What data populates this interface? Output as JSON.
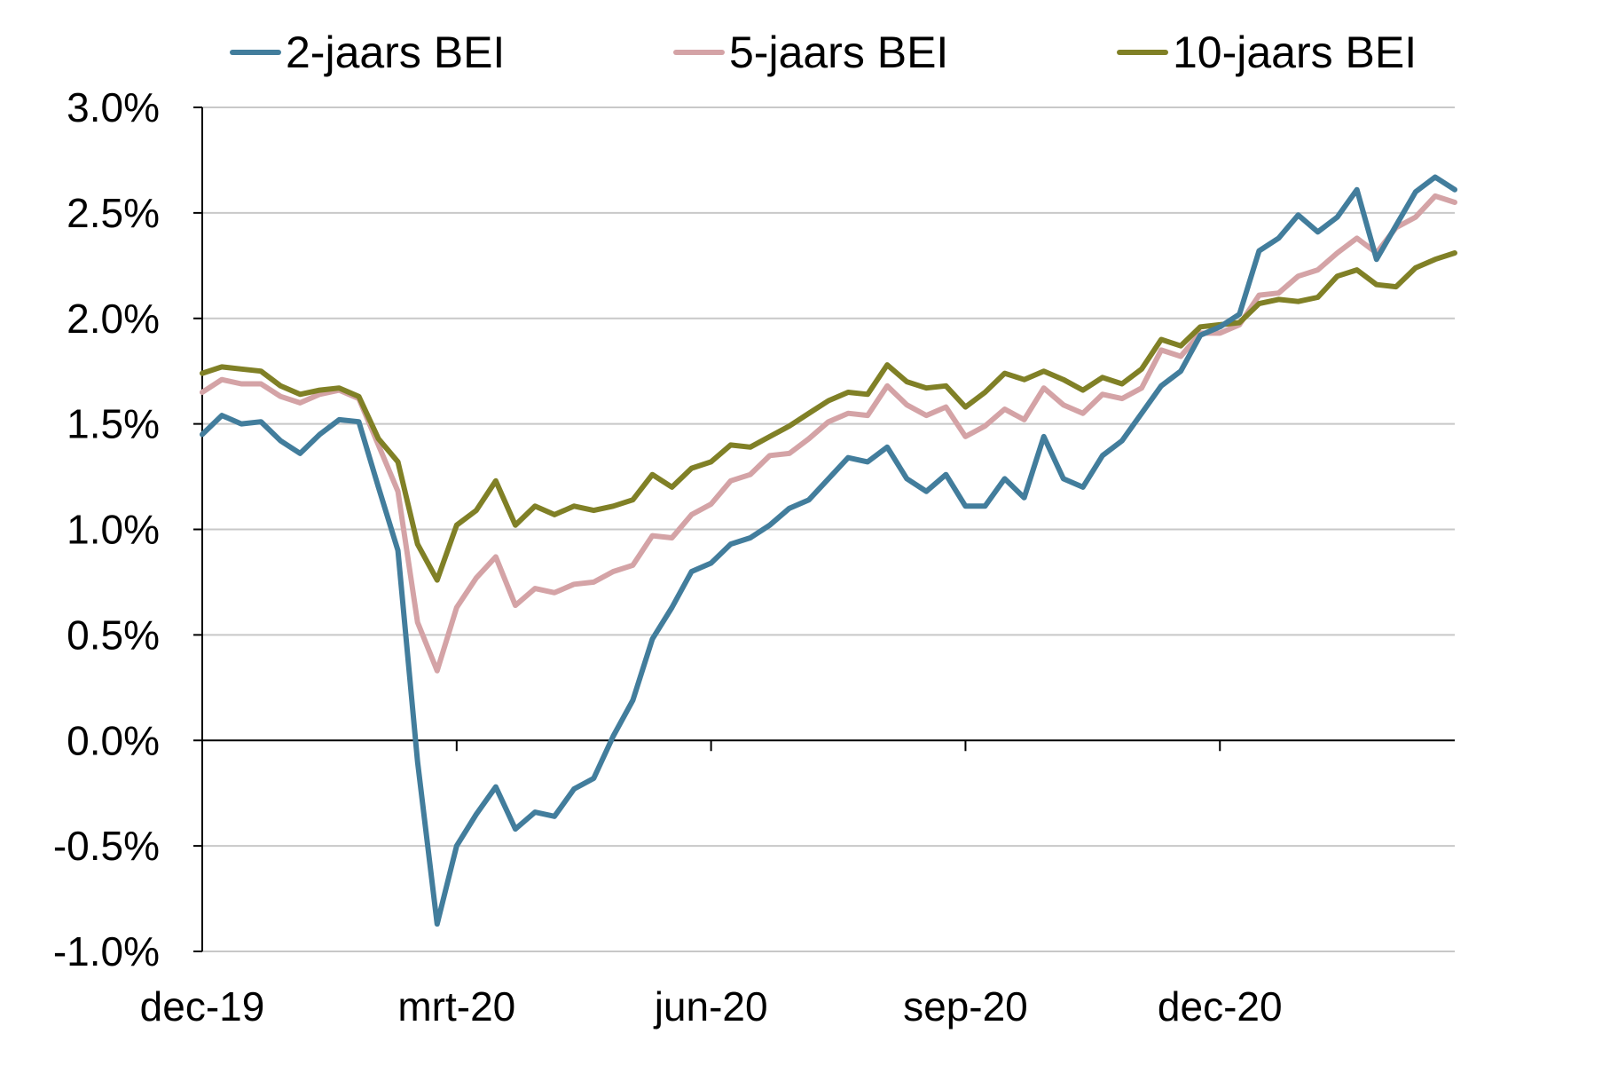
{
  "chart_data": {
    "type": "line",
    "title": "",
    "xlabel": "",
    "ylabel": "",
    "x_tick_labels": [
      "dec-19",
      "mrt-20",
      "jun-20",
      "sep-20",
      "dec-20"
    ],
    "y_tick_labels": [
      "3.0%",
      "2.5%",
      "2.0%",
      "1.5%",
      "1.0%",
      "0.5%",
      "0.0%",
      "-0.5%",
      "-1.0%"
    ],
    "y_ticks": [
      3.0,
      2.5,
      2.0,
      1.5,
      1.0,
      0.5,
      0.0,
      -0.5,
      -1.0
    ],
    "ylim": [
      -1.0,
      3.0
    ],
    "grid": true,
    "legend_position": "top",
    "x_index_of_ticks": [
      0,
      13,
      26,
      39,
      52
    ],
    "series": [
      {
        "name": "2-jaars BEI",
        "color": "#427d9c",
        "values": [
          1.45,
          1.54,
          1.5,
          1.51,
          1.42,
          1.36,
          1.45,
          1.52,
          1.51,
          1.2,
          0.9,
          -0.1,
          -0.87,
          -0.5,
          -0.35,
          -0.22,
          -0.42,
          -0.34,
          -0.36,
          -0.23,
          -0.18,
          0.02,
          0.19,
          0.48,
          0.63,
          0.8,
          0.84,
          0.93,
          0.96,
          1.02,
          1.1,
          1.14,
          1.24,
          1.34,
          1.32,
          1.39,
          1.24,
          1.18,
          1.26,
          1.11,
          1.11,
          1.24,
          1.15,
          1.44,
          1.24,
          1.2,
          1.35,
          1.42,
          1.55,
          1.68,
          1.75,
          1.92,
          1.96,
          2.02,
          2.32,
          2.38,
          2.49,
          2.41,
          2.48,
          2.61,
          2.28,
          2.44,
          2.6,
          2.67,
          2.61
        ]
      },
      {
        "name": "5-jaars BEI",
        "color": "#d4a3a6",
        "values": [
          1.65,
          1.71,
          1.69,
          1.69,
          1.63,
          1.6,
          1.64,
          1.66,
          1.62,
          1.4,
          1.18,
          0.56,
          0.33,
          0.63,
          0.77,
          0.87,
          0.64,
          0.72,
          0.7,
          0.74,
          0.75,
          0.8,
          0.83,
          0.97,
          0.96,
          1.07,
          1.12,
          1.23,
          1.26,
          1.35,
          1.36,
          1.43,
          1.51,
          1.55,
          1.54,
          1.68,
          1.59,
          1.54,
          1.58,
          1.44,
          1.49,
          1.57,
          1.52,
          1.67,
          1.59,
          1.55,
          1.64,
          1.62,
          1.67,
          1.85,
          1.82,
          1.93,
          1.93,
          1.97,
          2.11,
          2.12,
          2.2,
          2.23,
          2.31,
          2.38,
          2.31,
          2.43,
          2.48,
          2.58,
          2.55
        ]
      },
      {
        "name": "10-jaars BEI",
        "color": "#808026",
        "values": [
          1.74,
          1.77,
          1.76,
          1.75,
          1.68,
          1.64,
          1.66,
          1.67,
          1.63,
          1.43,
          1.32,
          0.93,
          0.76,
          1.02,
          1.09,
          1.23,
          1.02,
          1.11,
          1.07,
          1.11,
          1.09,
          1.11,
          1.14,
          1.26,
          1.2,
          1.29,
          1.32,
          1.4,
          1.39,
          1.44,
          1.49,
          1.55,
          1.61,
          1.65,
          1.64,
          1.78,
          1.7,
          1.67,
          1.68,
          1.58,
          1.65,
          1.74,
          1.71,
          1.75,
          1.71,
          1.66,
          1.72,
          1.69,
          1.76,
          1.9,
          1.87,
          1.96,
          1.97,
          1.98,
          2.07,
          2.09,
          2.08,
          2.1,
          2.2,
          2.23,
          2.16,
          2.15,
          2.24,
          2.28,
          2.31
        ]
      }
    ]
  }
}
